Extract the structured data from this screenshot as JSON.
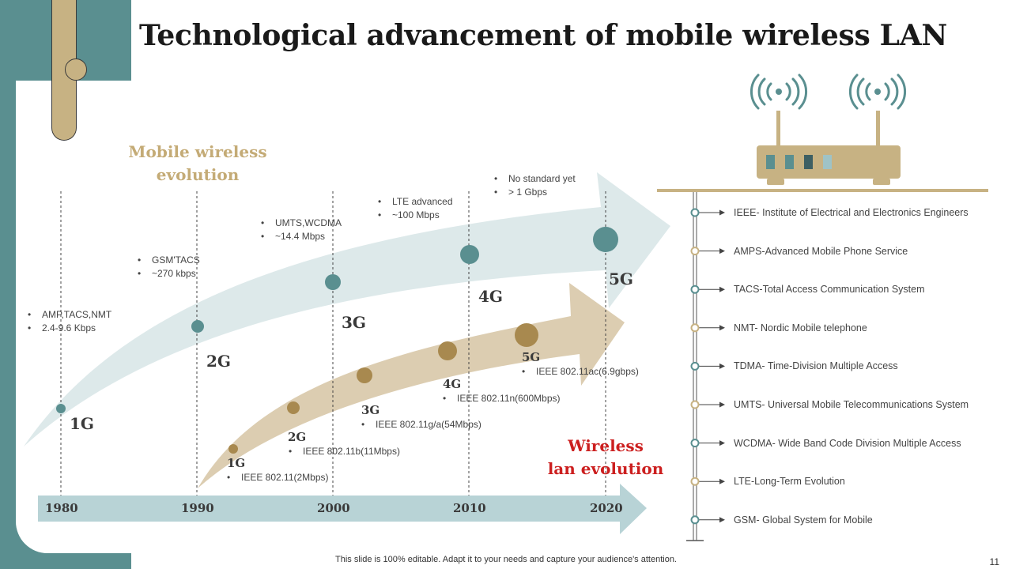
{
  "title": "Technological advancement of mobile wireless LAN",
  "mobile_heading": [
    "Mobile wireless",
    "evolution"
  ],
  "wireless_heading": [
    "Wireless",
    "lan evolution"
  ],
  "years": [
    "1980",
    "1990",
    "2000",
    "2010",
    "2020"
  ],
  "mobile_gens": [
    {
      "label": "1G",
      "bullets": [
        "AMP,TACS,NMT",
        "2.4-9.6 Kbps"
      ]
    },
    {
      "label": "2G",
      "bullets": [
        "GSM'TACS",
        "~270 kbps"
      ]
    },
    {
      "label": "3G",
      "bullets": [
        "UMTS,WCDMA",
        "~14.4 Mbps"
      ]
    },
    {
      "label": "4G",
      "bullets": [
        "LTE advanced",
        "~100 Mbps"
      ]
    },
    {
      "label": "5G",
      "bullets": [
        "No standard yet",
        "> 1 Gbps"
      ]
    }
  ],
  "wlan_gens": [
    {
      "label": "1G",
      "standard": "IEEE 802.11(2Mbps)"
    },
    {
      "label": "2G",
      "standard": "IEEE 802.11b(11Mbps)"
    },
    {
      "label": "3G",
      "standard": "IEEE 802.11g/a(54Mbps)"
    },
    {
      "label": "4G",
      "standard": "IEEE 802.11n(600Mbps)"
    },
    {
      "label": "5G",
      "standard": "IEEE 802.11ac(6.9gbps)"
    }
  ],
  "glossary": [
    "IEEE- Institute of Electrical and Electronics Engineers",
    "AMPS-Advanced Mobile Phone Service",
    "TACS-Total  Access Communication System",
    "NMT- Nordic Mobile telephone",
    "TDMA- Time-Division  Multiple Access",
    "UMTS- Universal  Mobile Telecommunications System",
    "WCDMA- Wide Band Code Division Multiple Access",
    "LTE-Long-Term  Evolution",
    "GSM- Global System for Mobile"
  ],
  "footer": "This slide is 100% editable. Adapt it to your needs and capture your audience's attention.",
  "page_number": "11",
  "colors": {
    "teal": "#5a8f90",
    "tan": "#c7b283",
    "light_teal_arrow": "#dde9ea",
    "light_tan_arrow": "#dccdb1",
    "timeline": "#b8d3d6",
    "red": "#cc1f1f",
    "router": "#c7b283"
  }
}
